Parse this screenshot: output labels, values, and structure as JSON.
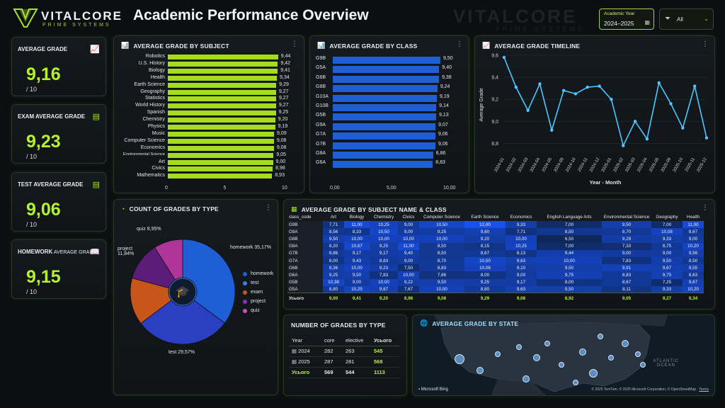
{
  "header": {
    "logo_name": "VITALCORE",
    "logo_sub": "PRIME SYSTEMS",
    "title": "Academic Performance Overview",
    "watermark": "VITALCORE",
    "watermark_sub": "PRIME SYSTEMS"
  },
  "filters": {
    "year_label": "Academic Year",
    "year_value": "2024–2025",
    "type_value": "All"
  },
  "kpis": [
    {
      "title": "AVERAGE GRADE",
      "value": "9,16",
      "of": "/ 10",
      "icon": "chart-up-icon"
    },
    {
      "title": "EXAM AVERAGE GRADE",
      "value": "9,23",
      "of": "/ 10",
      "icon": "exam-doc-icon"
    },
    {
      "title": "TEST AVERAGE GRADE",
      "value": "9,06",
      "of": "/ 10",
      "icon": "test-doc-icon"
    },
    {
      "title_a": "HOMEWORK",
      "title_b": " AVERAGE GRADE",
      "value": "9,15",
      "of": "/ 10",
      "icon": "book-icon"
    }
  ],
  "subject_chart": {
    "title": "AVERAGE GRADE BY SUBJECT",
    "axis_ticks": [
      "0",
      "5",
      "10"
    ],
    "categories": [
      "Robotics",
      "U.S. History",
      "Biology",
      "Health",
      "Earth Science",
      "Geography",
      "Statistics",
      "World History",
      "Spanish",
      "Chemistry",
      "Physics",
      "Music",
      "Computer Science",
      "Economics",
      "Environmental Science",
      "Art",
      "Civics",
      "Mathematics"
    ],
    "values": [
      9.44,
      9.42,
      9.41,
      9.34,
      9.29,
      9.27,
      9.27,
      9.27,
      9.25,
      9.2,
      9.19,
      9.09,
      9.08,
      9.08,
      9.05,
      9.0,
      8.98,
      8.93
    ],
    "labels": [
      "9,44",
      "9,42",
      "9,41",
      "9,34",
      "9,29",
      "9,27",
      "9,27",
      "9,27",
      "9,25",
      "9,20",
      "9,19",
      "9,09",
      "9,08",
      "9,08",
      "9,05",
      "9,00",
      "8,98",
      "8,93"
    ],
    "xlim": [
      0,
      10
    ],
    "color": "#a6dc1e"
  },
  "class_chart": {
    "title": "AVERAGE GRADE BY CLASS",
    "axis_ticks": [
      "0,00",
      "5,00",
      "10,00"
    ],
    "categories": [
      "G9B",
      "G5A",
      "G6B",
      "G8B",
      "G10A",
      "G10B",
      "G5B",
      "G9A",
      "G7A",
      "G7B",
      "G8A",
      "G6A"
    ],
    "values": [
      9.5,
      9.4,
      9.38,
      9.24,
      9.19,
      9.14,
      9.13,
      9.07,
      9.06,
      9.06,
      8.86,
      8.83
    ],
    "labels": [
      "9,50",
      "9,40",
      "9,38",
      "9,24",
      "9,19",
      "9,14",
      "9,13",
      "9,07",
      "9,06",
      "9,06",
      "8,86",
      "8,83"
    ],
    "xlim": [
      0,
      10
    ],
    "color": "#1f5fd6"
  },
  "timeline_chart": {
    "title": "AVERAGE GRADE TIMELINE",
    "ylabel": "Average Grade",
    "xlabel": "Year - Month",
    "y_ticks": [
      "9,6",
      "9,4",
      "9,2",
      "9,0",
      "8,8"
    ],
    "ylim": [
      8.7,
      9.6
    ],
    "x": [
      "2024-01",
      "2024-02",
      "2024-03",
      "2024-04",
      "2024-05",
      "2024-09",
      "2024-10",
      "2024-11",
      "2024-12",
      "2025-01",
      "2025-02",
      "2025-03",
      "2025-04",
      "2025-05",
      "2025-09",
      "2025-10",
      "2025-11",
      "2025-12"
    ],
    "values": [
      9.58,
      9.31,
      9.1,
      9.34,
      8.92,
      9.28,
      9.25,
      9.31,
      9.32,
      9.2,
      8.78,
      9.0,
      8.84,
      9.35,
      9.16,
      8.94,
      9.32,
      8.85
    ],
    "color": "#4fc6ff"
  },
  "pie_chart": {
    "title": "COUNT OF GRADES BY TYPE",
    "slices": [
      {
        "name": "homework",
        "share": 35.17,
        "color": "#1f5fd6",
        "label": "homework 35,17%"
      },
      {
        "name": "test",
        "share": 29.57,
        "color": "#2b3fc2",
        "label": "test 29,57%"
      },
      {
        "name": "exam",
        "share": 14.47,
        "color": "#c8561a",
        "label": ""
      },
      {
        "name": "project",
        "share": 11.84,
        "color": "#5b1c7a",
        "label": "project 11,84%"
      },
      {
        "name": "quiz",
        "share": 8.95,
        "color": "#b0359a",
        "label": "quiz 8,95%"
      }
    ]
  },
  "matrix": {
    "title": "AVERAGE GRADE BY SUBJECT NAME & CLASS",
    "row_header": "class_code",
    "columns": [
      "Art",
      "Biology",
      "Chemistry",
      "Civics",
      "Computer Science",
      "Earth Science",
      "Economics",
      "English Language Arts",
      "Environmental Science",
      "Geography",
      "Health"
    ],
    "rows": [
      {
        "code": "G9B",
        "vals": [
          "7,71",
          "11,00",
          "10,25",
          "9,00",
          "10,50",
          "12,00",
          "9,33",
          "7,00",
          "9,50",
          "7,00",
          "11,00"
        ]
      },
      {
        "code": "G9A",
        "vals": [
          "8,56",
          "8,33",
          "10,50",
          "9,00",
          "9,25",
          "9,60",
          "7,71",
          "8,50",
          "8,70",
          "10,08",
          "8,67"
        ]
      },
      {
        "code": "G8B",
        "vals": [
          "9,50",
          "10,00",
          "10,00",
          "10,00",
          "10,00",
          "9,20",
          "10,00",
          "6,50",
          "9,29",
          "9,33",
          "9,00"
        ]
      },
      {
        "code": "G8A",
        "vals": [
          "8,20",
          "10,67",
          "9,25",
          "11,00",
          "8,50",
          "8,15",
          "10,25",
          "7,00",
          "7,33",
          "8,75",
          "10,20"
        ]
      },
      {
        "code": "G7B",
        "vals": [
          "8,86",
          "9,17",
          "9,17",
          "9,40",
          "8,50",
          "8,67",
          "8,13",
          "9,44",
          "9,00",
          "9,00",
          "9,56"
        ]
      },
      {
        "code": "G7A",
        "vals": [
          "8,00",
          "9,43",
          "8,83",
          "9,00",
          "8,70",
          "10,50",
          "9,63",
          "10,00",
          "7,83",
          "9,50",
          "8,50"
        ]
      },
      {
        "code": "G6B",
        "vals": [
          "9,36",
          "10,00",
          "9,23",
          "7,50",
          "8,83",
          "10,08",
          "9,10",
          "9,50",
          "9,91",
          "9,67",
          "9,55"
        ]
      },
      {
        "code": "G6A",
        "vals": [
          "9,25",
          "9,50",
          "7,83",
          "10,00",
          "7,86",
          "8,00",
          "9,00",
          "9,75",
          "8,83",
          "9,75",
          "8,63"
        ]
      },
      {
        "code": "G5B",
        "vals": [
          "10,38",
          "9,00",
          "10,00",
          "9,22",
          "9,50",
          "9,25",
          "9,17",
          "8,00",
          "8,67",
          "7,25",
          "9,67"
        ]
      },
      {
        "code": "G5A",
        "vals": [
          "8,80",
          "10,25",
          "9,67",
          "7,67",
          "10,00",
          "8,80",
          "9,63",
          "9,50",
          "8,11",
          "9,33",
          "10,20"
        ]
      }
    ],
    "total_label": "Усього",
    "totals": [
      "9,00",
      "9,41",
      "9,20",
      "8,98",
      "9,08",
      "9,29",
      "9,08",
      "8,92",
      "9,05",
      "9,27",
      "9,34"
    ]
  },
  "count_table": {
    "title": "NUMBER OF GRADES BY TYPE",
    "headers": [
      "Year",
      "core",
      "elective",
      "Усього"
    ],
    "rows": [
      {
        "year": "2024",
        "core": "282",
        "elective": "263",
        "total": "545"
      },
      {
        "year": "2025",
        "core": "287",
        "elective": "281",
        "total": "568"
      }
    ],
    "total_row": {
      "year": "Усього",
      "core": "569",
      "elective": "544",
      "total": "1113"
    }
  },
  "map_panel": {
    "title": "AVERAGE GRADE BY STATE",
    "ocean_a": "ATLANTIC",
    "ocean_b": "OCEAN",
    "bing": "Microsoft Bing",
    "attribution": "© 2025 TomTom, © 2025 Microsoft Corporation, © OpenStreetMap",
    "terms": "Terms"
  }
}
